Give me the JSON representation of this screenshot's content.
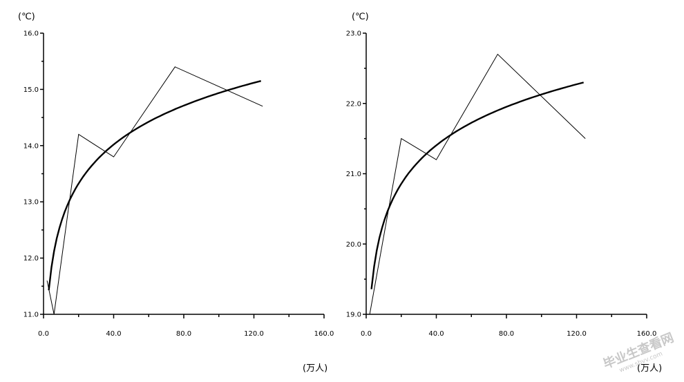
{
  "chart_data": [
    {
      "type": "line",
      "y_unit": "(℃)",
      "x_unit": "(万人)",
      "xlim": [
        0,
        160
      ],
      "ylim": [
        11,
        16
      ],
      "x_ticks": [
        "0.0",
        "40.0",
        "80.0",
        "120.0",
        "160.0"
      ],
      "y_ticks": [
        "11.0",
        "12.0",
        "13.0",
        "14.0",
        "15.0",
        "16.0"
      ],
      "series": [
        {
          "style": "thin",
          "x": [
            2,
            6,
            20,
            40,
            75,
            125
          ],
          "y": [
            11.6,
            11.0,
            14.2,
            13.8,
            15.4,
            14.7
          ]
        },
        {
          "style": "thick",
          "fit": "log",
          "x_range": [
            3,
            124
          ],
          "a": 10.33,
          "b": 1.0
        }
      ]
    },
    {
      "type": "line",
      "y_unit": "(℃)",
      "x_unit": "(万人)",
      "xlim": [
        0,
        160
      ],
      "ylim": [
        19,
        23
      ],
      "x_ticks": [
        "0.0",
        "40.0",
        "80.0",
        "120.0",
        "160.0"
      ],
      "y_ticks": [
        "19.0",
        "20.0",
        "21.0",
        "22.0",
        "23.0"
      ],
      "series": [
        {
          "style": "thin",
          "x": [
            2,
            20,
            40,
            75,
            125
          ],
          "y": [
            19.0,
            21.5,
            21.2,
            22.7,
            21.5
          ]
        },
        {
          "style": "thick",
          "fit": "log",
          "x_range": [
            3,
            124
          ],
          "a": 18.49,
          "b": 0.79
        }
      ]
    }
  ],
  "watermark": {
    "line1": "毕业生查看网",
    "line2": "www.sbvv.com"
  }
}
